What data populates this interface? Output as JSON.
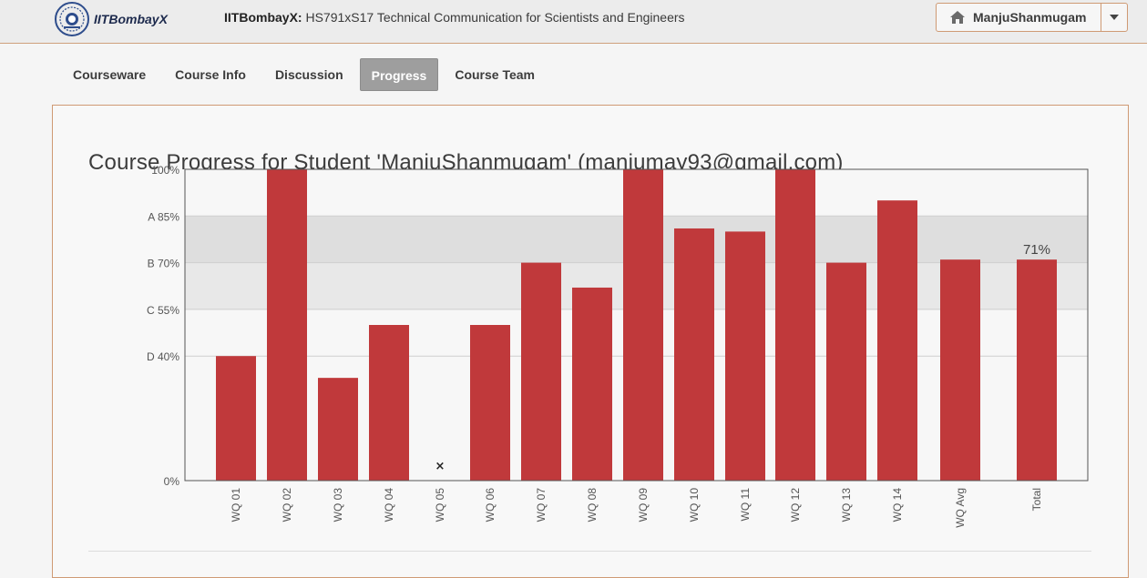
{
  "header": {
    "logo_text": "IITBombayX",
    "course_org": "IITBombayX:",
    "course_name": "HS791xS17 Technical Communication for Scientists and Engineers",
    "username": "ManjuShanmugam",
    "home_icon": "home-icon",
    "dropdown_icon": "chevron-down-icon"
  },
  "tabs": [
    {
      "label": "Courseware",
      "active": false
    },
    {
      "label": "Course Info",
      "active": false
    },
    {
      "label": "Discussion",
      "active": false
    },
    {
      "label": "Progress",
      "active": true
    },
    {
      "label": "Course Team",
      "active": false
    }
  ],
  "progress": {
    "title": "Course Progress for Student 'ManjuShanmugam' (manjumay93@gmail.com)"
  },
  "chart_data": {
    "type": "bar",
    "title": "",
    "xlabel": "",
    "ylabel": "",
    "ylim": [
      0,
      100
    ],
    "grid": true,
    "bar_color": "#c0393b",
    "band_colors": [
      "#dedede",
      "#e8e8e8"
    ],
    "y_ticks": [
      {
        "value": 100,
        "label": "100%"
      },
      {
        "value": 85,
        "label": "A 85%"
      },
      {
        "value": 70,
        "label": "B 70%"
      },
      {
        "value": 55,
        "label": "C 55%"
      },
      {
        "value": 40,
        "label": "D 40%"
      },
      {
        "value": 0,
        "label": "0%"
      }
    ],
    "categories": [
      "WQ 01",
      "WQ 02",
      "WQ 03",
      "WQ 04",
      "WQ 05",
      "WQ 06",
      "WQ 07",
      "WQ 08",
      "WQ 09",
      "WQ 10",
      "WQ 11",
      "WQ 12",
      "WQ 13",
      "WQ 14",
      "WQ Avg",
      "Total"
    ],
    "values": [
      40,
      100,
      33,
      50,
      null,
      50,
      70,
      62,
      100,
      81,
      80,
      100,
      70,
      90,
      71,
      71
    ],
    "missing_marker": "×",
    "annotations": [
      {
        "category": "Total",
        "text": "71%"
      }
    ]
  }
}
